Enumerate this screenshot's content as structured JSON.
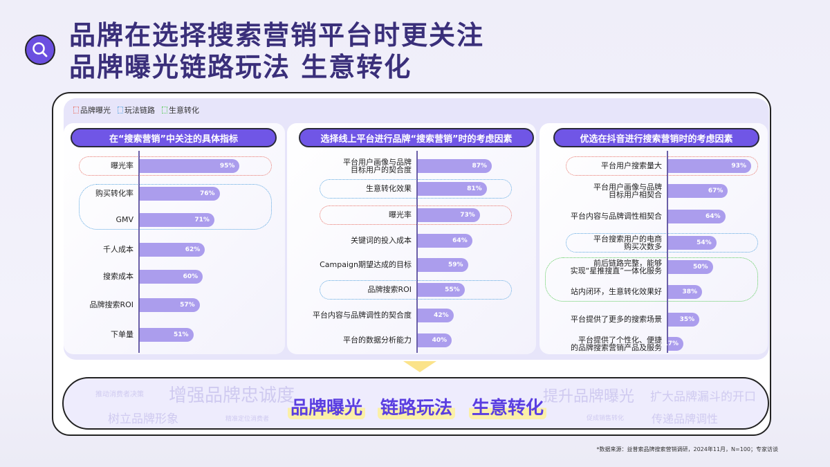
{
  "title": {
    "line1": "品牌在选择搜索营销平台时更关注",
    "line2": "品牌曝光链路玩法 生意转化"
  },
  "colors": {
    "bar": "#ab9ded",
    "header": "#7056e6",
    "exposure": "#e8746a",
    "link": "#5aa6e0",
    "conversion": "#5ccc5c",
    "title": "#3a2f7a"
  },
  "legend": [
    {
      "label": "品牌曝光",
      "color": "#e8746a"
    },
    {
      "label": "玩法链路",
      "color": "#5aa6e0"
    },
    {
      "label": "生意转化",
      "color": "#5ccc5c"
    }
  ],
  "chart_data": [
    {
      "type": "bar",
      "orientation": "horizontal",
      "title": "在“搜索营销”中关注的具体指标",
      "unit": "%",
      "categories": [
        "曝光率",
        "购买转化率",
        "GMV",
        "千人成本",
        "搜索成本",
        "品牌搜索ROI",
        "下单量"
      ],
      "values": [
        95,
        76,
        71,
        62,
        60,
        57,
        51
      ],
      "highlights": [
        {
          "group": "品牌曝光",
          "rows": [
            0
          ]
        },
        {
          "group": "玩法链路",
          "rows": [
            1,
            2
          ]
        }
      ]
    },
    {
      "type": "bar",
      "orientation": "horizontal",
      "title": "选择线上平台进行品牌“搜索营销”时的考虑因素",
      "unit": "%",
      "categories": [
        "平台用户画像与品牌\n目标用户的契合度",
        "生意转化效果",
        "曝光率",
        "关键词的投入成本",
        "Campaign期望达成的目标",
        "品牌搜索ROI",
        "平台内容与品牌调性的契合度",
        "平台的数据分析能力"
      ],
      "values": [
        87,
        81,
        73,
        64,
        59,
        55,
        42,
        40
      ],
      "highlights": [
        {
          "group": "玩法链路",
          "rows": [
            1
          ]
        },
        {
          "group": "品牌曝光",
          "rows": [
            2
          ]
        },
        {
          "group": "玩法链路",
          "rows": [
            5
          ]
        }
      ]
    },
    {
      "type": "bar",
      "orientation": "horizontal",
      "title": "优选在抖音进行搜索营销时的考虑因素",
      "unit": "%",
      "categories": [
        "平台用户搜索量大",
        "平台用户画像与品牌\n目标用户相契合",
        "平台内容与品牌调性相契合",
        "平台搜索用户的电商\n购买次数多",
        "前后链路完整，能够\n实现“星推搜直”一体化服务",
        "站内闭环，生意转化效果好",
        "平台提供了更多的搜索场景",
        "平台提供了个性化、便捷\n的品牌搜索营销产品及服务"
      ],
      "values": [
        93,
        67,
        64,
        54,
        50,
        38,
        35,
        17
      ],
      "highlights": [
        {
          "group": "品牌曝光",
          "rows": [
            0
          ]
        },
        {
          "group": "玩法链路",
          "rows": [
            3
          ]
        },
        {
          "group": "生意转化",
          "rows": [
            4,
            5
          ]
        }
      ]
    }
  ],
  "bottom": {
    "keywords": [
      "品牌曝光",
      "链路玩法",
      "生意转化"
    ],
    "cloud": [
      "推动消费者决策",
      "增强品牌忠诚度",
      "树立品牌形象",
      "精准定位消费者",
      "提升品牌曝光",
      "扩大品牌漏斗的开口",
      "促成销售转化",
      "传递品牌调性"
    ]
  },
  "footnote": "*数据来源：益普索品牌搜索营销调研，2024年11月，N=100；专家访谈"
}
